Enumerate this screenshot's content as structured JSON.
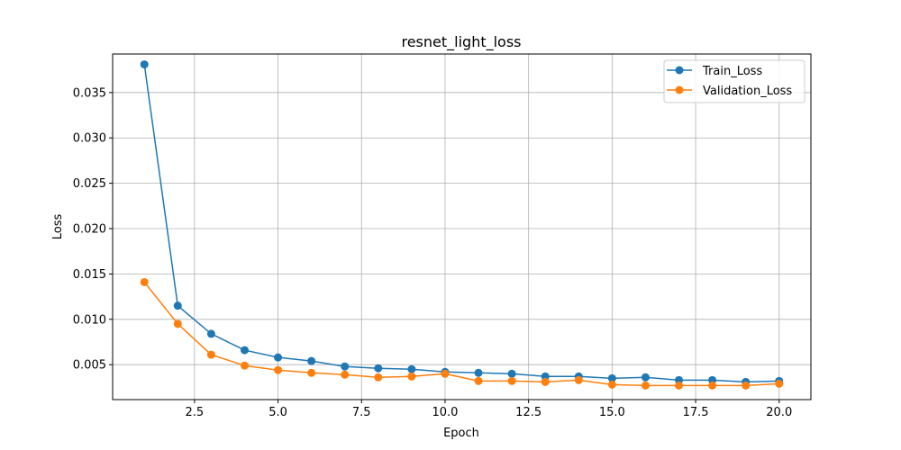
{
  "chart_data": {
    "type": "line",
    "title": "resnet_light_loss",
    "xlabel": "Epoch",
    "ylabel": "Loss",
    "x": [
      1,
      2,
      3,
      4,
      5,
      6,
      7,
      8,
      9,
      10,
      11,
      12,
      13,
      14,
      15,
      16,
      17,
      18,
      19,
      20
    ],
    "xlim": [
      0.05,
      20.95
    ],
    "ylim": [
      0.00115,
      0.03925
    ],
    "xticks": [
      2.5,
      5.0,
      7.5,
      10.0,
      12.5,
      15.0,
      17.5,
      20.0
    ],
    "xtick_labels": [
      "2.5",
      "5.0",
      "7.5",
      "10.0",
      "12.5",
      "15.0",
      "17.5",
      "20.0"
    ],
    "yticks": [
      0.005,
      0.01,
      0.015,
      0.02,
      0.025,
      0.03,
      0.035
    ],
    "ytick_labels": [
      "0.005",
      "0.010",
      "0.015",
      "0.020",
      "0.025",
      "0.030",
      "0.035"
    ],
    "grid": true,
    "legend_position": "top-right",
    "series": [
      {
        "name": "Train_Loss",
        "color": "#1f77b4",
        "values": [
          0.0381,
          0.0115,
          0.0084,
          0.0066,
          0.0058,
          0.0054,
          0.0048,
          0.0046,
          0.0045,
          0.0042,
          0.0041,
          0.004,
          0.0037,
          0.0037,
          0.0035,
          0.0036,
          0.0033,
          0.0033,
          0.0031,
          0.0032
        ]
      },
      {
        "name": "Validation_Loss",
        "color": "#ff7f0e",
        "values": [
          0.0141,
          0.0095,
          0.0061,
          0.0049,
          0.0044,
          0.0041,
          0.0039,
          0.0036,
          0.0037,
          0.004,
          0.0032,
          0.0032,
          0.0031,
          0.0033,
          0.0028,
          0.0027,
          0.0027,
          0.0027,
          0.0027,
          0.0029
        ]
      }
    ]
  }
}
